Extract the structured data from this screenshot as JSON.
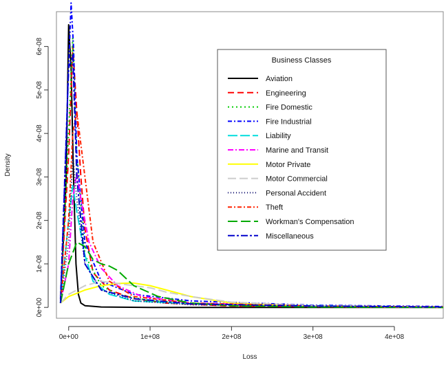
{
  "chart_data": {
    "type": "line",
    "title": "",
    "xlabel": "Loss",
    "ylabel": "Density",
    "xlim": [
      -15000000,
      460000000
    ],
    "ylim": [
      -2.5e-09,
      6.8e-08
    ],
    "x_ticks": [
      0,
      100000000,
      200000000,
      300000000,
      400000000
    ],
    "x_tick_labels": [
      "0e+00",
      "1e+08",
      "2e+08",
      "3e+08",
      "4e+08"
    ],
    "y_ticks": [
      0,
      1e-08,
      2e-08,
      3e-08,
      4e-08,
      5e-08,
      6e-08
    ],
    "y_tick_labels": [
      "0e+00",
      "1e-08",
      "2e-08",
      "3e-08",
      "4e-08",
      "5e-08",
      "6e-08"
    ],
    "grid": false,
    "legend": {
      "title": "Business Classes",
      "placement": "top-right"
    },
    "series": [
      {
        "name": "Aviation",
        "color": "#000000",
        "dash": "solid",
        "x": [
          -10000000,
          -3000000,
          0,
          3000000,
          6000000,
          9000000,
          12000000,
          15000000,
          20000000,
          40000000,
          100000000,
          200000000,
          460000000
        ],
        "y": [
          1e-09,
          3e-08,
          6.5e-08,
          5.5e-08,
          3e-08,
          1e-08,
          3e-09,
          1e-09,
          4e-10,
          1e-10,
          0,
          0,
          0
        ]
      },
      {
        "name": "Engineering",
        "color": "#ff0000",
        "dash": "9,5",
        "x": [
          -10000000,
          0,
          5000000,
          10000000,
          15000000,
          20000000,
          30000000,
          50000000,
          80000000,
          120000000,
          200000000,
          460000000
        ],
        "y": [
          2e-09,
          3.5e-08,
          6e-08,
          4.5e-08,
          3e-08,
          1.8e-08,
          8e-09,
          4e-09,
          2e-09,
          1e-09,
          3e-10,
          0
        ]
      },
      {
        "name": "Fire Domestic",
        "color": "#00cc00",
        "dash": "2,4",
        "x": [
          -10000000,
          0,
          5000000,
          10000000,
          20000000,
          40000000,
          60000000,
          100000000,
          200000000,
          460000000
        ],
        "y": [
          1e-09,
          4e-08,
          6.2e-08,
          3.5e-08,
          1.2e-08,
          5e-09,
          3e-09,
          1.5e-09,
          5e-10,
          0
        ]
      },
      {
        "name": "Fire Industrial",
        "color": "#0000ff",
        "dash": "6,3,2,3",
        "x": [
          -10000000,
          0,
          3000000,
          6000000,
          10000000,
          20000000,
          40000000,
          80000000,
          150000000,
          300000000,
          460000000
        ],
        "y": [
          2e-09,
          5.5e-08,
          7e-08,
          6e-08,
          3.5e-08,
          1.5e-08,
          6e-09,
          3e-09,
          1.5e-09,
          5e-10,
          2e-10
        ]
      },
      {
        "name": "Liability",
        "color": "#00dddd",
        "dash": "14,4",
        "x": [
          -10000000,
          0,
          5000000,
          10000000,
          20000000,
          30000000,
          50000000,
          80000000,
          150000000,
          300000000,
          460000000
        ],
        "y": [
          1e-09,
          2e-08,
          2.8e-08,
          2.2e-08,
          1.2e-08,
          6e-09,
          3e-09,
          1.5e-09,
          8e-10,
          4e-10,
          1e-10
        ]
      },
      {
        "name": "Marine and Transit",
        "color": "#ff00ff",
        "dash": "8,3,2,3",
        "x": [
          -10000000,
          0,
          5000000,
          10000000,
          15000000,
          25000000,
          40000000,
          60000000,
          90000000,
          150000000,
          300000000,
          460000000
        ],
        "y": [
          1e-09,
          1e-08,
          2.5e-08,
          3.1e-08,
          2.5e-08,
          1.5e-08,
          9e-09,
          5e-09,
          2.5e-09,
          1e-09,
          3e-10,
          1e-10
        ]
      },
      {
        "name": "Motor Private",
        "color": "#ffff00",
        "dash": "solid",
        "x": [
          -10000000,
          0,
          20000000,
          40000000,
          60000000,
          80000000,
          100000000,
          120000000,
          150000000,
          200000000,
          300000000,
          460000000
        ],
        "y": [
          1e-09,
          2.5e-09,
          4e-09,
          5e-09,
          5.5e-09,
          5.6e-09,
          5e-09,
          4e-09,
          2.5e-09,
          1e-09,
          2e-10,
          0
        ]
      },
      {
        "name": "Motor Commercial",
        "color": "#cccccc",
        "dash": "12,5",
        "x": [
          -10000000,
          0,
          20000000,
          40000000,
          60000000,
          80000000,
          100000000,
          120000000,
          150000000,
          200000000,
          300000000,
          460000000
        ],
        "y": [
          1e-09,
          3e-09,
          5e-09,
          6e-09,
          5.5e-09,
          5e-09,
          4.5e-09,
          3.5e-09,
          2.5e-09,
          1.2e-09,
          4e-10,
          1e-10
        ]
      },
      {
        "name": "Personal Accident",
        "color": "#000066",
        "dash": "1,3",
        "x": [
          -10000000,
          0,
          5000000,
          10000000,
          20000000,
          40000000,
          80000000,
          150000000,
          300000000,
          460000000
        ],
        "y": [
          1e-09,
          1.5e-08,
          3.5e-08,
          2.5e-08,
          1e-08,
          4e-09,
          1.5e-09,
          6e-10,
          2e-10,
          0
        ]
      },
      {
        "name": "Theft",
        "color": "#ff2200",
        "dash": "6,3,2,3",
        "x": [
          -10000000,
          0,
          5000000,
          10000000,
          20000000,
          30000000,
          50000000,
          80000000,
          150000000,
          300000000,
          460000000
        ],
        "y": [
          1e-09,
          2e-08,
          4e-08,
          4.5e-08,
          3e-08,
          1.5e-08,
          6e-09,
          2.5e-09,
          1e-09,
          3e-10,
          1e-10
        ]
      },
      {
        "name": "Workman's Compensation",
        "color": "#00aa00",
        "dash": "14,5",
        "x": [
          -10000000,
          0,
          10000000,
          20000000,
          30000000,
          40000000,
          50000000,
          60000000,
          80000000,
          110000000,
          150000000,
          200000000,
          300000000,
          460000000
        ],
        "y": [
          1e-09,
          1e-08,
          1.5e-08,
          1.4e-08,
          1.1e-08,
          1e-08,
          9.5e-09,
          8.5e-09,
          5e-09,
          2.5e-09,
          1e-09,
          4e-10,
          1e-10,
          0
        ]
      },
      {
        "name": "Miscellaneous",
        "color": "#0000cc",
        "dash": "10,3,3,3",
        "x": [
          -10000000,
          0,
          5000000,
          10000000,
          20000000,
          40000000,
          80000000,
          150000000,
          300000000,
          460000000
        ],
        "y": [
          1e-09,
          5.5e-08,
          5.8e-08,
          3e-08,
          1e-08,
          4e-09,
          2e-09,
          8e-10,
          3e-10,
          1e-10
        ]
      }
    ]
  }
}
